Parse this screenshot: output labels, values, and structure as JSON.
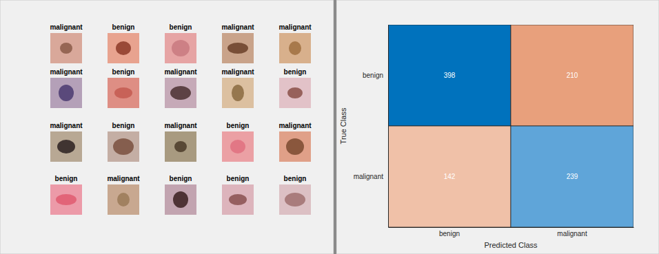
{
  "image_grid": {
    "labels": [
      [
        "malignant",
        "benign",
        "benign",
        "malignant",
        "malignant"
      ],
      [
        "malignant",
        "benign",
        "malignant",
        "malignant",
        "benign"
      ],
      [
        "malignant",
        "benign",
        "malignant",
        "benign",
        "malignant"
      ],
      [
        "benign",
        "malignant",
        "benign",
        "benign",
        "benign"
      ]
    ]
  },
  "chart_data": {
    "type": "heatmap",
    "x_label": "Predicted Class",
    "y_label": "True Class",
    "x_categories": [
      "benign",
      "malignant"
    ],
    "y_categories": [
      "benign",
      "malignant"
    ],
    "cells": [
      [
        398,
        210
      ],
      [
        142,
        239
      ]
    ],
    "colors": [
      [
        "#0072bd",
        "#e8a07c"
      ],
      [
        "#f0c1a8",
        "#5fa5d9"
      ]
    ],
    "data_labels": true
  }
}
